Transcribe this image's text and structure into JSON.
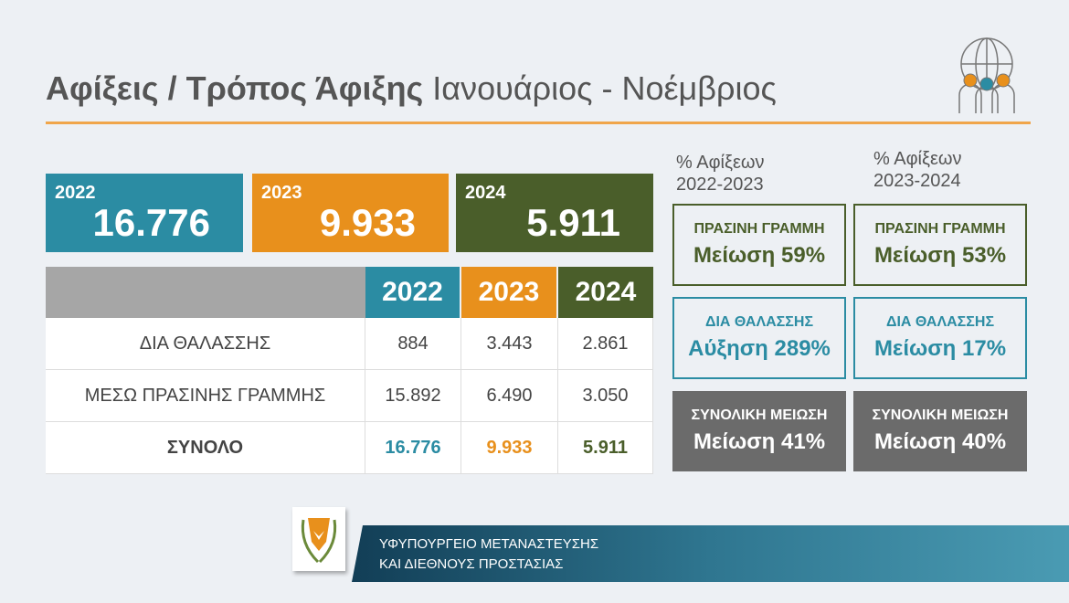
{
  "header": {
    "title_bold": "Αφίξεις / Τρόπος Άφιξης",
    "title_rest": "Ιανουάριος - Νοέμβριος"
  },
  "kpis": [
    {
      "year": "2022",
      "value": "16.776",
      "color": "#2b8ca3"
    },
    {
      "year": "2023",
      "value": "9.933",
      "color": "#e8901c"
    },
    {
      "year": "2024",
      "value": "5.911",
      "color": "#4a5e2a"
    }
  ],
  "table": {
    "headers": [
      "2022",
      "2023",
      "2024"
    ],
    "rows": [
      {
        "label": "ΔΙΑ ΘΑΛΑΣΣΗΣ",
        "values": [
          "884",
          "3.443",
          "2.861"
        ]
      },
      {
        "label": "ΜΕΣΩ ΠΡΑΣΙΝΗΣ ΓΡΑΜΜΗΣ",
        "values": [
          "15.892",
          "6.490",
          "3.050"
        ]
      },
      {
        "label": "ΣΥΝΟΛΟ",
        "values": [
          "16.776",
          "9.933",
          "5.911"
        ]
      }
    ]
  },
  "comparisons": [
    {
      "heading": [
        "% Αφίξεων",
        "2022-2023"
      ],
      "boxes": [
        {
          "label": "ΠΡΑΣΙΝΗ ΓΡΑΜΜΗ",
          "value": "Μείωση 59%"
        },
        {
          "label": "ΔΙΑ ΘΑΛΑΣΣΗΣ",
          "value": "Αύξηση 289%"
        },
        {
          "label": "ΣΥΝΟΛΙΚΗ ΜΕΙΩΣΗ",
          "value": "Μείωση 41%"
        }
      ]
    },
    {
      "heading": [
        "% Αφίξεων",
        "2023-2024"
      ],
      "boxes": [
        {
          "label": "ΠΡΑΣΙΝΗ ΓΡΑΜΜΗ",
          "value": "Μείωση 53%"
        },
        {
          "label": "ΔΙΑ ΘΑΛΑΣΣΗΣ",
          "value": "Μείωση 17%"
        },
        {
          "label": "ΣΥΝΟΛΙΚΗ ΜΕΙΩΣΗ",
          "value": "Μείωση 40%"
        }
      ]
    }
  ],
  "footer": {
    "line1": "ΥΦΥΠΟΥΡΓΕΙΟ ΜΕΤΑΝΑΣΤΕΥΣΗΣ",
    "line2": "ΚΑΙ ΔΙΕΘΝΟΥΣ ΠΡΟΣΤΑΣΙΑΣ"
  }
}
